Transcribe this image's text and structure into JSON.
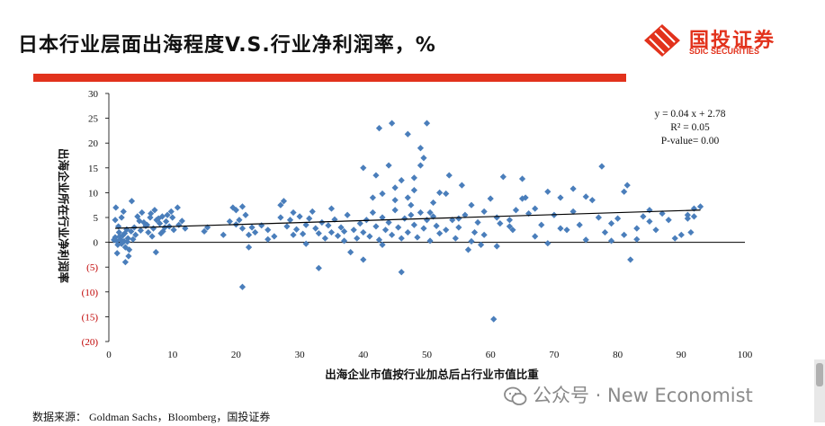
{
  "page": {
    "title": "日本行业层面出海程度V.S.行业净利润率，%",
    "source": "数据来源：  Goldman Sachs，Bloomberg，国投证券",
    "watermark": "公众号 · New Economist"
  },
  "logo": {
    "cn": "国投证券",
    "en": "SDIC SECURITIES",
    "accent": "#e2321c"
  },
  "chart_data": {
    "type": "scatter",
    "xlabel": "出海企业市值按行业加总后占行业市值比重",
    "ylabel": "出海企业所在行业净利润率",
    "xlim": [
      0,
      100
    ],
    "ylim": [
      -20,
      30
    ],
    "x_ticks": [
      0,
      10,
      20,
      30,
      40,
      50,
      60,
      70,
      80,
      90,
      100
    ],
    "y_ticks": [
      30,
      25,
      20,
      15,
      10,
      5,
      0,
      -5,
      -10,
      -15,
      -20
    ],
    "y_tick_labels": [
      "30",
      "25",
      "20",
      "15",
      "10",
      "5",
      "0",
      "(5)",
      "(10)",
      "(15)",
      "(20)"
    ],
    "negative_label_color": "#c00000",
    "marker_color": "#4a7ebb",
    "annotation": [
      "y = 0.04 x + 2.78",
      "R² = 0.05",
      "P-value= 0.00"
    ],
    "trendline": {
      "slope": 0.04,
      "intercept": 2.78,
      "x_range": [
        1,
        93
      ]
    },
    "points": [
      [
        1,
        1
      ],
      [
        1.2,
        0.3
      ],
      [
        1.4,
        -0.5
      ],
      [
        1.6,
        2
      ],
      [
        1.8,
        0.6
      ],
      [
        2,
        -0.3
      ],
      [
        2.2,
        1.4
      ],
      [
        2.4,
        0.2
      ],
      [
        2.6,
        -1
      ],
      [
        2.8,
        2.6
      ],
      [
        1,
        4.5
      ],
      [
        1.5,
        3.2
      ],
      [
        2,
        5
      ],
      [
        2.5,
        1.8
      ],
      [
        3,
        0.8
      ],
      [
        3.2,
        -1.5
      ],
      [
        3.5,
        2.2
      ],
      [
        1.1,
        7
      ],
      [
        2.3,
        6.2
      ],
      [
        3.6,
        8.3
      ],
      [
        1.3,
        -2.2
      ],
      [
        2.6,
        -4
      ],
      [
        3.1,
        -2.8
      ],
      [
        0.8,
        0.5
      ],
      [
        1.7,
        1.2
      ],
      [
        2.9,
        0.1
      ],
      [
        4,
        3
      ],
      [
        4.5,
        5.2
      ],
      [
        5,
        2.4
      ],
      [
        5.5,
        4
      ],
      [
        6,
        3.5
      ],
      [
        6.5,
        5
      ],
      [
        7,
        2.8
      ],
      [
        7.5,
        4.5
      ],
      [
        8,
        3.8
      ],
      [
        8.5,
        2.2
      ],
      [
        9,
        4.2
      ],
      [
        9.5,
        3.2
      ],
      [
        10,
        5
      ],
      [
        4.2,
        1.5
      ],
      [
        5.2,
        6
      ],
      [
        6.2,
        2
      ],
      [
        7.2,
        6.5
      ],
      [
        8.2,
        1.8
      ],
      [
        9.2,
        5.5
      ],
      [
        10.2,
        2.5
      ],
      [
        5.8,
        3.3
      ],
      [
        7.8,
        4.8
      ],
      [
        6.8,
        1.2
      ],
      [
        8.8,
        3
      ],
      [
        4.8,
        4.3
      ],
      [
        3.8,
        0.6
      ],
      [
        7.4,
        -2
      ],
      [
        9.8,
        6.2
      ],
      [
        10.8,
        7
      ],
      [
        11,
        3.5
      ],
      [
        11.5,
        4.3
      ],
      [
        12,
        2.8
      ],
      [
        6.6,
        5.8
      ],
      [
        8.4,
        5.2
      ],
      [
        15,
        2.2
      ],
      [
        15.5,
        3
      ],
      [
        18,
        1.5
      ],
      [
        19,
        4.2
      ],
      [
        19.5,
        7
      ],
      [
        20,
        3.6
      ],
      [
        20.5,
        4.5
      ],
      [
        21,
        7.2
      ],
      [
        21,
        2.8
      ],
      [
        21.5,
        5.5
      ],
      [
        22,
        1.5
      ],
      [
        22,
        -1
      ],
      [
        22.5,
        3
      ],
      [
        23,
        2
      ],
      [
        21,
        -9
      ],
      [
        20,
        6.5
      ],
      [
        24,
        3.4
      ],
      [
        25,
        2.5
      ],
      [
        26,
        1.2
      ],
      [
        27,
        5
      ],
      [
        27,
        7.5
      ],
      [
        27.5,
        8.3
      ],
      [
        28,
        3.2
      ],
      [
        28.5,
        4.5
      ],
      [
        29,
        6
      ],
      [
        29.5,
        2.6
      ],
      [
        30,
        5.2
      ],
      [
        30.5,
        1.7
      ],
      [
        31,
        3.5
      ],
      [
        31.5,
        4.8
      ],
      [
        32,
        6.2
      ],
      [
        32.5,
        2.8
      ],
      [
        33,
        1.8
      ],
      [
        33.5,
        4
      ],
      [
        34,
        0.8
      ],
      [
        34.5,
        3.4
      ],
      [
        35,
        2
      ],
      [
        35.5,
        4.6
      ],
      [
        36,
        1.3
      ],
      [
        36.5,
        3
      ],
      [
        37,
        0.3
      ],
      [
        37.5,
        5.5
      ],
      [
        38,
        -2
      ],
      [
        38.5,
        2.5
      ],
      [
        39,
        0.8
      ],
      [
        33,
        -5.2
      ],
      [
        35,
        6.8
      ],
      [
        25,
        0.6
      ],
      [
        29,
        1.5
      ],
      [
        31,
        -0.3
      ],
      [
        37,
        2.2
      ],
      [
        39.5,
        3.8
      ],
      [
        40,
        2
      ],
      [
        40.5,
        4.5
      ],
      [
        41,
        1.2
      ],
      [
        41.5,
        6
      ],
      [
        42,
        3.2
      ],
      [
        42.5,
        0.5
      ],
      [
        43,
        5
      ],
      [
        43.5,
        2.5
      ],
      [
        44,
        4
      ],
      [
        44.5,
        1.5
      ],
      [
        45,
        6.5
      ],
      [
        45.5,
        3
      ],
      [
        46,
        0.8
      ],
      [
        46.5,
        4.8
      ],
      [
        47,
        2
      ],
      [
        47.5,
        5.5
      ],
      [
        48,
        3.5
      ],
      [
        48.5,
        1
      ],
      [
        49,
        6
      ],
      [
        49.5,
        2.8
      ],
      [
        50,
        4.5
      ],
      [
        50.5,
        0.3
      ],
      [
        51,
        5.2
      ],
      [
        51.5,
        3.3
      ],
      [
        52,
        1.8
      ],
      [
        40,
        15
      ],
      [
        42,
        13.5
      ],
      [
        44,
        15.5
      ],
      [
        45,
        11
      ],
      [
        46,
        12.5
      ],
      [
        47,
        9
      ],
      [
        48,
        10.5
      ],
      [
        49,
        19
      ],
      [
        49.5,
        17
      ],
      [
        50,
        24
      ],
      [
        41.5,
        9
      ],
      [
        43,
        9.8
      ],
      [
        44.5,
        24
      ],
      [
        47,
        21.8
      ],
      [
        49,
        15.5
      ],
      [
        42.5,
        23
      ],
      [
        46,
        -6
      ],
      [
        40,
        -3.5
      ],
      [
        45,
        8.5
      ],
      [
        48,
        13
      ],
      [
        51,
        8
      ],
      [
        52,
        10
      ],
      [
        43,
        -0.5
      ],
      [
        47.5,
        7.5
      ],
      [
        50.5,
        6
      ],
      [
        53,
        2.5
      ],
      [
        53.5,
        13.5
      ],
      [
        54,
        4.5
      ],
      [
        54.5,
        0.8
      ],
      [
        55,
        3
      ],
      [
        55.5,
        11.5
      ],
      [
        56,
        5.5
      ],
      [
        56.5,
        -1.5
      ],
      [
        57,
        7.5
      ],
      [
        57.5,
        2
      ],
      [
        58,
        4
      ],
      [
        58.5,
        -0.5
      ],
      [
        59,
        1.5
      ],
      [
        60,
        8.8
      ],
      [
        60.5,
        -15.5
      ],
      [
        61,
        5
      ],
      [
        61.5,
        3.8
      ],
      [
        62,
        13.2
      ],
      [
        63,
        4.5
      ],
      [
        63.5,
        2.5
      ],
      [
        64,
        6.5
      ],
      [
        65,
        12.8
      ],
      [
        65.5,
        9
      ],
      [
        66,
        5.8
      ],
      [
        67,
        1.2
      ],
      [
        68,
        3.5
      ],
      [
        69,
        10.2
      ],
      [
        70,
        5.5
      ],
      [
        71,
        9
      ],
      [
        72,
        2.5
      ],
      [
        73,
        10.8
      ],
      [
        74,
        3.5
      ],
      [
        75,
        0.5
      ],
      [
        76,
        8.5
      ],
      [
        77,
        5
      ],
      [
        77.5,
        15.3
      ],
      [
        78,
        2
      ],
      [
        79,
        3.8
      ],
      [
        80,
        4.8
      ],
      [
        81,
        1.5
      ],
      [
        81.5,
        11.5
      ],
      [
        82,
        -3.5
      ],
      [
        83,
        0.6
      ],
      [
        84,
        5.2
      ],
      [
        85,
        6.5
      ],
      [
        86,
        2.5
      ],
      [
        88,
        4.5
      ],
      [
        90,
        1.5
      ],
      [
        91,
        5.5
      ],
      [
        91.5,
        2
      ],
      [
        92,
        6.8
      ],
      [
        93,
        7.2
      ],
      [
        53,
        9.8
      ],
      [
        55,
        4.8
      ],
      [
        57,
        0.2
      ],
      [
        59,
        6.2
      ],
      [
        61,
        -0.8
      ],
      [
        63,
        3.2
      ],
      [
        65,
        8.8
      ],
      [
        67,
        6.8
      ],
      [
        69,
        -0.2
      ],
      [
        71,
        2.8
      ],
      [
        73,
        6.2
      ],
      [
        75,
        9.2
      ],
      [
        79,
        0.3
      ],
      [
        81,
        10.2
      ],
      [
        83,
        2.8
      ],
      [
        85,
        4.2
      ],
      [
        87,
        5.8
      ],
      [
        89,
        0.8
      ],
      [
        91,
        4.8
      ],
      [
        92,
        5.2
      ]
    ]
  }
}
